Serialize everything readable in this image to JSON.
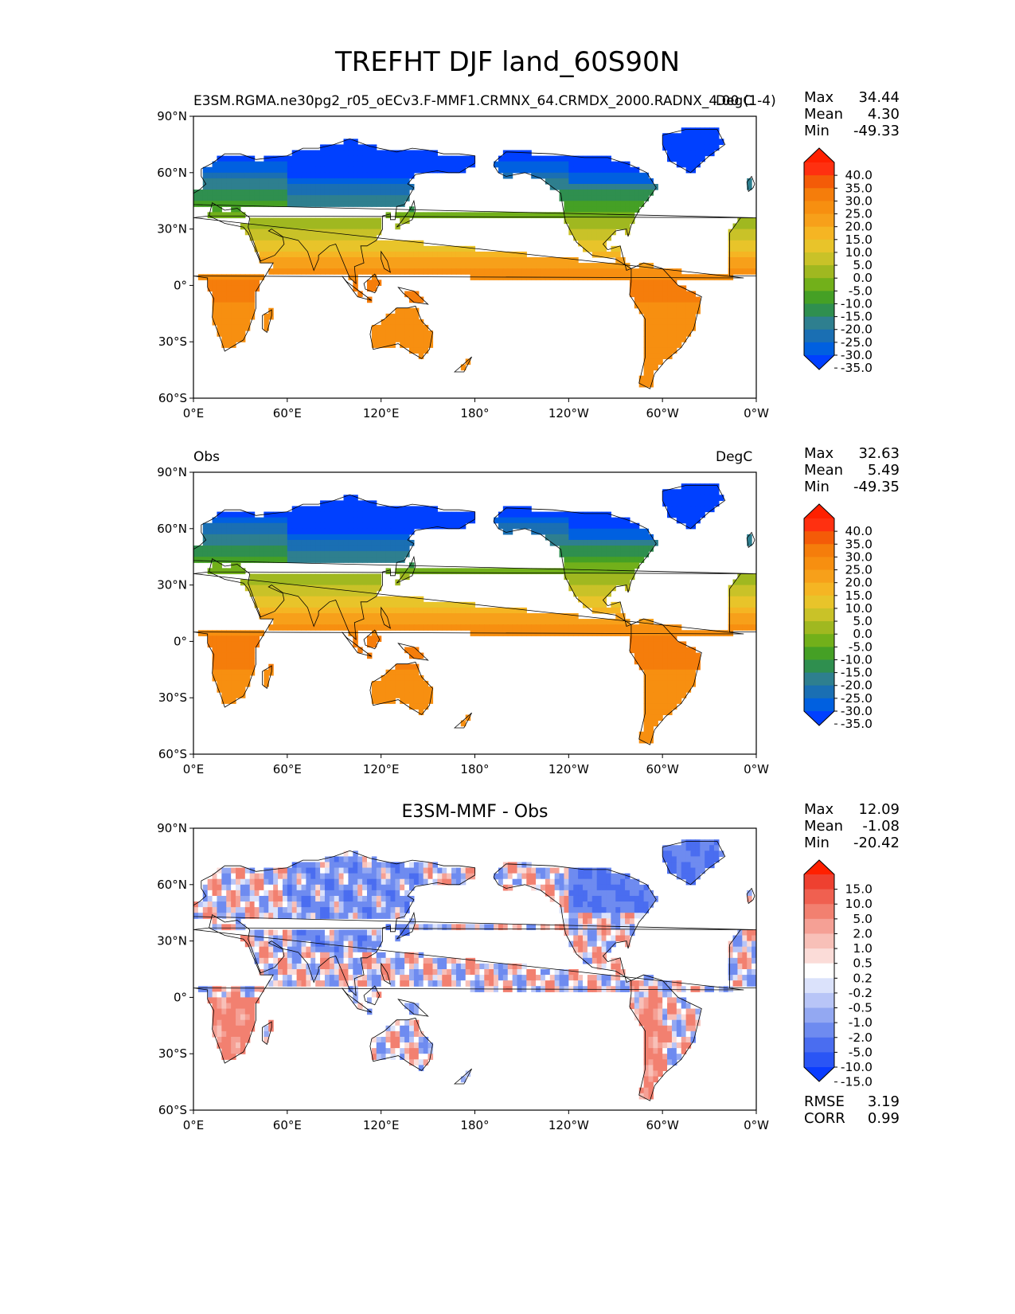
{
  "title": "TREFHT DJF land_60S90N",
  "panels": [
    {
      "left_title": "E3SM.RGMA.ne30pg2_r05_oECv3.F-MMF1.CRMNX_64.CRMDX_2000.RADNX_4.00 (1-4)",
      "center_title": "",
      "right_title": "DegC",
      "stats": {
        "max_label": "Max",
        "max": "34.44",
        "mean_label": "Mean",
        "mean": "4.30",
        "min_label": "Min",
        "min": "-49.33"
      },
      "colorbar": {
        "type": "temperature",
        "ticks": [
          "40.0",
          "35.0",
          "30.0",
          "25.0",
          "20.0",
          "15.0",
          "10.0",
          "5.0",
          "0.0",
          "-5.0",
          "-10.0",
          "-15.0",
          "-20.0",
          "-25.0",
          "-30.0",
          "-35.0"
        ]
      }
    },
    {
      "left_title": "Obs",
      "center_title": "",
      "right_title": "DegC",
      "stats": {
        "max_label": "Max",
        "max": "32.63",
        "mean_label": "Mean",
        "mean": "5.49",
        "min_label": "Min",
        "min": "-49.35"
      },
      "colorbar": {
        "type": "temperature",
        "ticks": [
          "40.0",
          "35.0",
          "30.0",
          "25.0",
          "20.0",
          "15.0",
          "10.0",
          "5.0",
          "0.0",
          "-5.0",
          "-10.0",
          "-15.0",
          "-20.0",
          "-25.0",
          "-30.0",
          "-35.0"
        ]
      }
    },
    {
      "left_title": "",
      "center_title": "E3SM-MMF - Obs",
      "right_title": "",
      "stats": {
        "max_label": "Max",
        "max": "12.09",
        "mean_label": "Mean",
        "mean": "-1.08",
        "min_label": "Min",
        "min": "-20.42"
      },
      "colorbar": {
        "type": "difference",
        "ticks": [
          "15.0",
          "10.0",
          "5.0",
          "2.0",
          "1.0",
          "0.5",
          "0.2",
          "-0.2",
          "-0.5",
          "-1.0",
          "-2.0",
          "-5.0",
          "-10.0",
          "-15.0"
        ]
      },
      "metrics": {
        "rmse_label": "RMSE",
        "rmse": "3.19",
        "corr_label": "CORR",
        "corr": "0.99"
      }
    }
  ],
  "axes": {
    "lat_ticks": [
      "90°N",
      "60°N",
      "30°N",
      "0°",
      "30°S",
      "60°S"
    ],
    "lon_ticks": [
      "0°E",
      "60°E",
      "120°E",
      "180°",
      "120°W",
      "60°W",
      "0°W"
    ]
  },
  "colors": {
    "temperature_scale": [
      "#0040ff",
      "#0060e0",
      "#1a6fb3",
      "#2e7f8f",
      "#2f8f4f",
      "#45a025",
      "#72b01a",
      "#a0b820",
      "#c9c228",
      "#e8c42a",
      "#f5b523",
      "#f7a01a",
      "#f78f10",
      "#f57d0b",
      "#f45b08",
      "#ff3010",
      "#ff2000"
    ],
    "difference_scale": [
      "#0a3cff",
      "#2a55f5",
      "#4a6df0",
      "#6e8bf0",
      "#93a8f2",
      "#b8c5f7",
      "#dbe2fb",
      "#ffffff",
      "#fbdcd8",
      "#f8c0b8",
      "#f5a095",
      "#f28070",
      "#f06050",
      "#ee4030",
      "#ff2000"
    ]
  }
}
